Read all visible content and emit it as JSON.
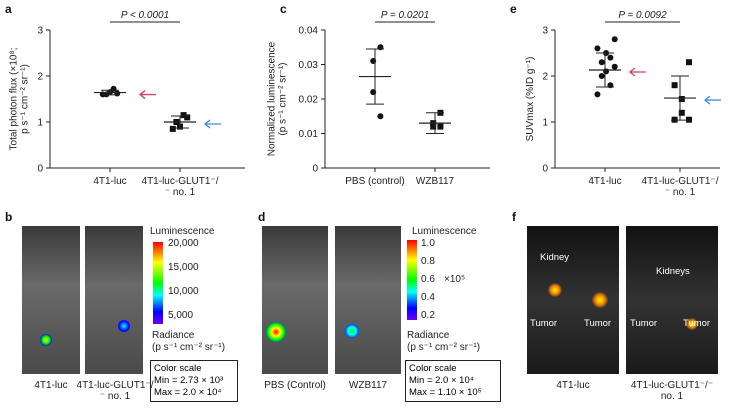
{
  "chart_data": [
    {
      "type": "dot",
      "label": "a",
      "ylabel": [
        "Total photon flux (×10⁸;",
        "p s⁻¹ cm⁻² sr⁻¹)"
      ],
      "categories": [
        "4T1-luc",
        "4T1-luc-GLUT1⁻/⁻ no. 1"
      ],
      "points": [
        [
          1.62,
          1.6,
          1.65,
          1.72,
          1.6
        ],
        [
          1.1,
          1.0,
          0.9,
          1.15,
          0.85
        ]
      ],
      "means": [
        1.64,
        1.0
      ],
      "sd": [
        0.05,
        0.13
      ],
      "markers": [
        "circle",
        "square"
      ],
      "ylim": [
        0,
        3
      ],
      "yticks": [
        0,
        1,
        2,
        3
      ],
      "annotation": "P < 0.0001"
    },
    {
      "type": "dot",
      "label": "c",
      "ylabel": [
        "Normalized luminescence",
        "(p s⁻¹ cm⁻² sr⁻¹)"
      ],
      "categories": [
        "PBS (control)",
        "WZB117"
      ],
      "points": [
        [
          0.035,
          0.031,
          0.022,
          0.015
        ],
        [
          0.016,
          0.013,
          0.012,
          0.012
        ]
      ],
      "means": [
        0.0265,
        0.013
      ],
      "sd": [
        0.008,
        0.003
      ],
      "markers": [
        "circle",
        "square"
      ],
      "ylim": [
        0,
        0.04
      ],
      "yticks": [
        0,
        0.01,
        0.02,
        0.03,
        0.04
      ],
      "annotation": "P = 0.0201"
    },
    {
      "type": "dot",
      "label": "e",
      "ylabel": [
        "SUVmax (%ID g⁻¹)"
      ],
      "categories": [
        "4T1-luc",
        "4T1-luc-GLUT1⁻/⁻ no. 1"
      ],
      "points": [
        [
          2.8,
          2.6,
          2.4,
          2.3,
          2.5,
          2.1,
          2.0,
          1.8,
          1.6,
          2.2
        ],
        [
          2.3,
          1.8,
          1.5,
          1.2,
          1.05,
          1.05
        ]
      ],
      "means": [
        2.13,
        1.52
      ],
      "sd": [
        0.37,
        0.48
      ],
      "markers": [
        "circle",
        "square"
      ],
      "ylim": [
        0,
        3
      ],
      "yticks": [
        0,
        1,
        2,
        3
      ],
      "annotation": "P = 0.0092"
    }
  ],
  "panels": {
    "b": {
      "label": "b",
      "legend_title": "Luminescence",
      "bar_ticks": [
        "20,000",
        "15,000",
        "10,000",
        "5,000"
      ],
      "radiance": "Radiance",
      "radiance_units": "(p s⁻¹ cm⁻² sr⁻¹)",
      "scale_title": "Color scale",
      "scale_min": "Min = 2.73 × 10³",
      "scale_max": "Max = 2.0 × 10⁴",
      "images": [
        "4T1-luc",
        "4T1-luc-GLUT1⁻/⁻ no. 1"
      ]
    },
    "d": {
      "label": "d",
      "legend_title": "Luminescence",
      "bar_ticks": [
        "1.0",
        "0.8",
        "0.6",
        "0.4",
        "0.2"
      ],
      "bar_unit": "×10⁵",
      "radiance": "Radiance",
      "radiance_units": "(p s⁻¹ cm⁻² sr⁻¹)",
      "scale_title": "Color scale",
      "scale_min": "Min = 2.0 × 10⁴",
      "scale_max": "Max = 1.10 × 10⁵",
      "images": [
        "PBS (Control)",
        "WZB117"
      ]
    },
    "f": {
      "label": "f",
      "left_labels": [
        "Kidney",
        "Tumor",
        "Tumor"
      ],
      "right_labels": [
        "Kidneys",
        "Tumor",
        "Tumor"
      ],
      "images": [
        "4T1-luc",
        "4T1-luc-GLUT1⁻/⁻ no. 1"
      ]
    }
  }
}
